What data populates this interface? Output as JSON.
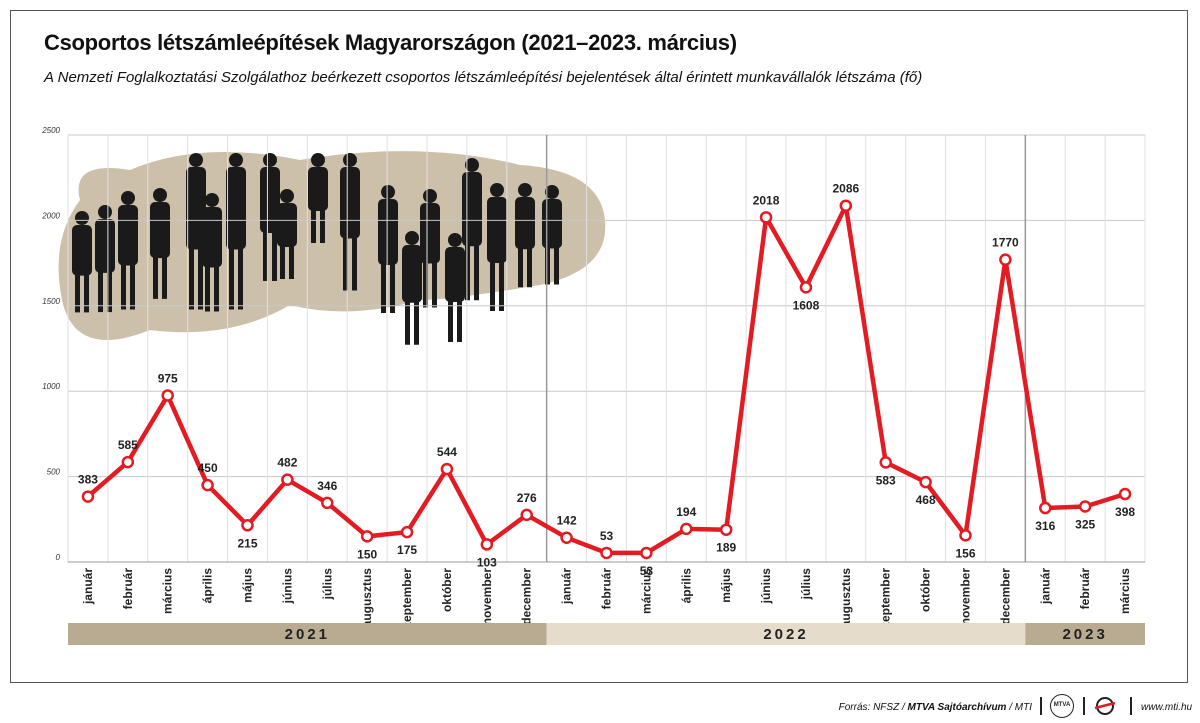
{
  "header": {
    "title": "Csoportos létszámleépítések Magyarországon (2021–2023. március)",
    "subtitle": "A Nemzeti Foglalkoztatási Szolgálathoz beérkezett csoportos létszámleépítési bejelentések által érintett munkavállalók létszáma (fő)"
  },
  "footer": {
    "source_prefix": "Forrás: NFSZ / ",
    "source_bold": "MTVA Sajtóarchívum",
    "source_suffix": " / MTI",
    "mtva_logo": "MTVA",
    "url": "www.mti.hu"
  },
  "chart_data": {
    "type": "line",
    "title": "",
    "xlabel": "",
    "ylabel": "",
    "ylim": [
      0,
      2500
    ],
    "yticks": [
      0,
      500,
      1000,
      1500,
      2000,
      2500
    ],
    "grid": true,
    "line_color": "#e31b23",
    "categories": [
      "január",
      "február",
      "március",
      "április",
      "május",
      "június",
      "július",
      "augusztus",
      "szeptember",
      "október",
      "november",
      "december",
      "január",
      "február",
      "március",
      "április",
      "május",
      "június",
      "július",
      "augusztus",
      "szeptember",
      "október",
      "november",
      "december",
      "január",
      "február",
      "március"
    ],
    "values": [
      383,
      585,
      975,
      450,
      215,
      482,
      346,
      150,
      175,
      544,
      103,
      276,
      142,
      53,
      53,
      194,
      189,
      2018,
      1608,
      2086,
      583,
      468,
      156,
      1770,
      316,
      325,
      398
    ],
    "label_position": [
      "above",
      "above",
      "above",
      "above",
      "below",
      "above",
      "above",
      "below",
      "below",
      "above",
      "below",
      "above",
      "above",
      "above",
      "below",
      "above",
      "below",
      "above",
      "below",
      "above",
      "below",
      "below",
      "below",
      "above",
      "below",
      "below",
      "below"
    ],
    "years": [
      {
        "label": "2021",
        "count": 12,
        "color": "#b9ab92",
        "text_color": "#222222"
      },
      {
        "label": "2022",
        "count": 12,
        "color": "#e6dccb",
        "text_color": "#222222"
      },
      {
        "label": "2023",
        "count": 3,
        "color": "#b9ab92",
        "text_color": "#222222"
      }
    ]
  }
}
